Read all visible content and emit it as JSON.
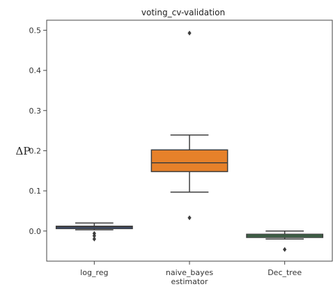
{
  "chart_data": {
    "type": "box",
    "title": "voting_cv-validation",
    "xlabel": "estimator",
    "ylabel": "ΔP",
    "categories": [
      "log_reg",
      "naive_bayes",
      "Dec_tree"
    ],
    "ylim": [
      -0.075,
      0.525
    ],
    "yticks": [
      0.0,
      0.1,
      0.2,
      0.3,
      0.4,
      0.5
    ],
    "ytick_labels": [
      "0.0",
      "0.1",
      "0.2",
      "0.3",
      "0.4",
      "0.5"
    ],
    "grid": false,
    "boxes": [
      {
        "category": "log_reg",
        "whisker_low": 0.003,
        "q1": 0.006,
        "median": 0.01,
        "q3": 0.012,
        "whisker_high": 0.02,
        "outliers": [
          -0.006,
          -0.012,
          -0.02
        ],
        "color": "#3e5fa0"
      },
      {
        "category": "naive_bayes",
        "whisker_low": 0.097,
        "q1": 0.148,
        "median": 0.17,
        "q3": 0.202,
        "whisker_high": 0.239,
        "outliers": [
          0.033,
          0.493
        ],
        "color": "#e6812a"
      },
      {
        "category": "Dec_tree",
        "whisker_low": -0.02,
        "q1": -0.016,
        "median": -0.012,
        "q3": -0.008,
        "whisker_high": 0.0,
        "outliers": [
          -0.046
        ],
        "color": "#3e8f52"
      }
    ]
  }
}
